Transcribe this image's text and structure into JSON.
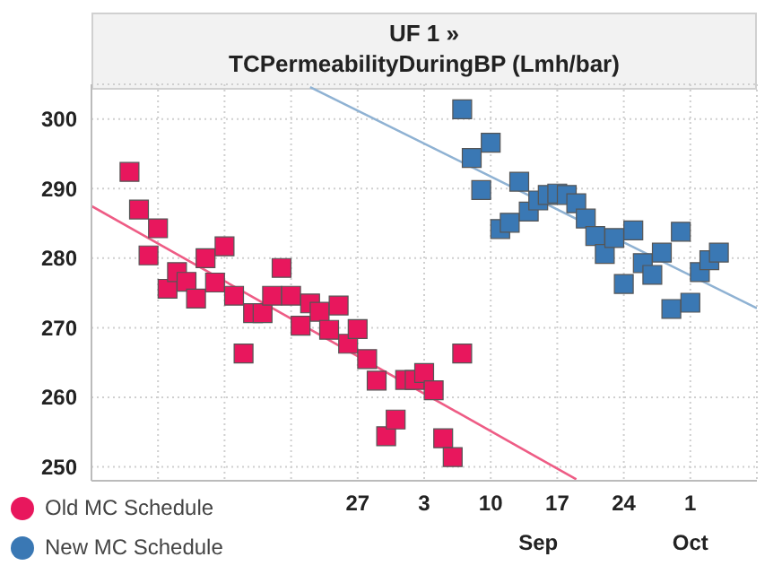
{
  "chart_data": {
    "type": "scatter",
    "title": "UF 1 »",
    "subtitle": "TCPermeabilityDuringBP (Lmh/bar)",
    "grid": true,
    "legend": "bottom left",
    "xlim": [
      "--07-30",
      "--10-08"
    ],
    "xticks": [
      {
        "value": "--08-06",
        "label": null
      },
      {
        "value": "--08-13",
        "label": null
      },
      {
        "value": "--08-20",
        "label": null
      },
      {
        "value": "--08-27",
        "label": "27"
      },
      {
        "value": "--09-03",
        "label": "3"
      },
      {
        "value": "--09-10",
        "label": "10"
      },
      {
        "value": "--09-17",
        "label": "17"
      },
      {
        "value": "--09-24",
        "label": "24"
      },
      {
        "value": "--10-01",
        "label": "1"
      }
    ],
    "x2lim": [
      "--07-30",
      "--10-08"
    ],
    "x2ticks": [
      {
        "value": "--09-15",
        "label": "Sep"
      },
      {
        "value": "--10-01",
        "label": "Oct"
      }
    ],
    "ylim": [
      248,
      305
    ],
    "yticks": [
      250,
      260,
      270,
      280,
      290,
      300
    ],
    "series": [
      {
        "name": "Old MC Schedule",
        "marker": "square",
        "color": "#e8175d",
        "x": [
          "--08-03",
          "--08-04",
          "--08-06",
          "--08-05",
          "--08-07",
          "--08-08",
          "--08-09",
          "--08-10",
          "--08-11",
          "--08-12",
          "--08-13",
          "--08-14",
          "--08-15",
          "--08-16",
          "--08-17",
          "--08-18",
          "--08-19",
          "--08-20",
          "--08-21",
          "--08-22",
          "--08-23",
          "--08-24",
          "--08-25",
          "--08-26",
          "--08-27",
          "--08-28",
          "--08-29",
          "--08-30",
          "--08-31",
          "--09-01",
          "--09-02",
          "--09-03",
          "--09-04",
          "--09-05",
          "--09-06",
          "--09-07"
        ],
        "values": [
          292.4,
          287,
          284.3,
          280.4,
          275.6,
          278,
          276.6,
          274.2,
          280,
          276.5,
          281.7,
          274.6,
          266.3,
          272.1,
          272.1,
          274.6,
          278.6,
          274.6,
          270.3,
          273.5,
          272.3,
          269.7,
          273.2,
          267.7,
          269.8,
          265.5,
          262.4,
          254.4,
          256.8,
          262.5,
          262.5,
          263.5,
          261,
          254.1,
          251.4,
          266.3
        ]
      },
      {
        "name": "New MC Schedule",
        "marker": "square",
        "color": "#3a78b4",
        "x": [
          "--09-07",
          "--09-08",
          "--09-09",
          "--09-10",
          "--09-11",
          "--09-12",
          "--09-13",
          "--09-14",
          "--09-15",
          "--09-16",
          "--09-17",
          "--09-18",
          "--09-19",
          "--09-20",
          "--09-21",
          "--09-22",
          "--09-23",
          "--09-24",
          "--09-25",
          "--09-26",
          "--09-27",
          "--09-28",
          "--09-29",
          "--09-30",
          "--10-01",
          "--10-02",
          "--10-03",
          "--10-04"
        ],
        "values": [
          301.4,
          294.4,
          289.8,
          296.6,
          284.2,
          285.1,
          291,
          286.7,
          288.3,
          289.1,
          289.3,
          289.1,
          287.9,
          285.7,
          283.2,
          280.6,
          282.9,
          276.3,
          284,
          279.3,
          277.6,
          280.8,
          272.7,
          283.8,
          273.6,
          278,
          279.7,
          280.8
        ]
      },
      {
        "type": "line",
        "marker": "none",
        "color": "#ee5c85",
        "x": [
          "--07-30",
          "--09-19"
        ],
        "values": [
          287.5,
          248.2
        ]
      },
      {
        "type": "line",
        "marker": "none",
        "color": "#8fb2d3",
        "x": [
          "--08-22",
          "--10-08"
        ],
        "values": [
          304.6,
          272.8
        ]
      }
    ]
  }
}
